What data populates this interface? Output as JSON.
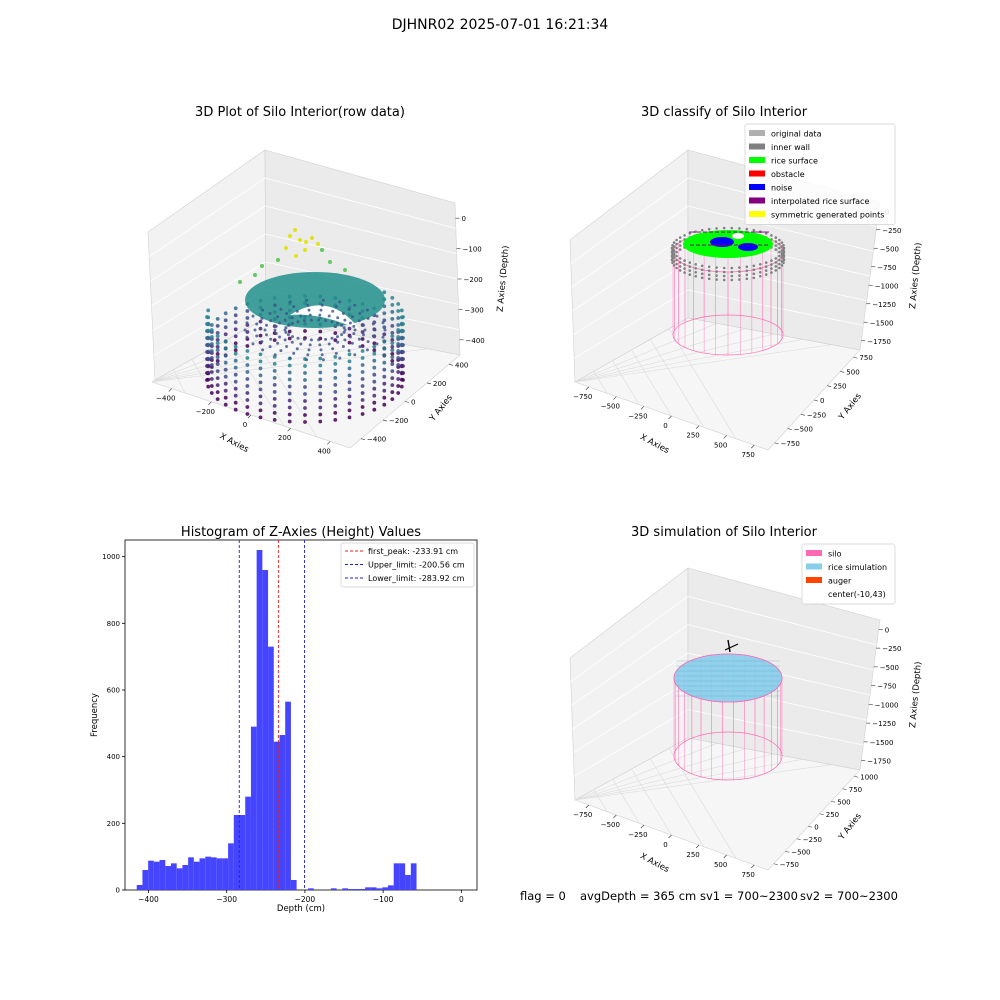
{
  "figure_title": "DJHNR02 2025-07-01 16:21:34",
  "status_bar": {
    "flag": "flag = 0",
    "avg_depth": "avgDepth = 365 cm",
    "sv1": "sv1 = 700~2300",
    "sv2": "sv2 = 700~2300"
  },
  "colors": {
    "bar": "#4545ff",
    "peak_line": "#e02020",
    "limit_line": "#2020c0",
    "silo": "#ff69b4",
    "rice_simulation": "#87ceeb",
    "auger": "#ff4500",
    "original_data": "#b0b0b0",
    "inner_wall": "#808080",
    "rice_surface": "#00ff00",
    "obstacle": "#ff0000",
    "noise": "#0000ff",
    "interpolated_rice_surface": "#800080",
    "symmetric_generated_points": "#ffff00"
  },
  "chart_data": [
    {
      "type": "scatter3d",
      "title": "3D Plot of Silo Interior(row data)",
      "xlabel": "X Axies",
      "ylabel": "Y Axies",
      "zlabel": "Z Axies (Depth)",
      "x_ticks": [
        "−400",
        "−200",
        "0",
        "200",
        "400"
      ],
      "y_ticks": [
        "−400",
        "−200",
        "0",
        "200",
        "400"
      ],
      "z_ticks": [
        "−400",
        "−300",
        "−200",
        "−100",
        "0"
      ],
      "colormap": "viridis",
      "xlim": [
        -450,
        450
      ],
      "ylim": [
        -450,
        450
      ],
      "zlim": [
        -430,
        0
      ]
    },
    {
      "type": "scatter3d",
      "title": "3D classify of Silo Interior",
      "xlabel": "X Axies",
      "ylabel": "Y Axies",
      "zlabel": "Z Axies (Depth)",
      "x_ticks": [
        "−750",
        "−500",
        "−250",
        "0",
        "250",
        "500",
        "750"
      ],
      "y_ticks": [
        "−750",
        "−500",
        "−250",
        "0",
        "250",
        "500",
        "750"
      ],
      "z_ticks": [
        "−1750",
        "−1500",
        "−1250",
        "−1000",
        "−750",
        "−500",
        "−250",
        "0"
      ],
      "legend": [
        {
          "label": "original data",
          "color": "#b0b0b0"
        },
        {
          "label": "inner wall",
          "color": "#808080"
        },
        {
          "label": "rice surface",
          "color": "#00ff00"
        },
        {
          "label": "obstacle",
          "color": "#ff0000"
        },
        {
          "label": "noise",
          "color": "#0000ff"
        },
        {
          "label": "interpolated rice surface",
          "color": "#800080"
        },
        {
          "label": "symmetric generated points",
          "color": "#ffff00"
        }
      ],
      "legend_position": "top-right",
      "xlim": [
        -850,
        850
      ],
      "ylim": [
        -850,
        850
      ],
      "zlim": [
        -1850,
        0
      ]
    },
    {
      "type": "bar",
      "title": "Histogram of Z-Axies (Height) Values",
      "xlabel": "Depth (cm)",
      "ylabel": "Frequency",
      "bin_start": -415,
      "bin_width": 7.3,
      "values": [
        15,
        60,
        88,
        85,
        90,
        72,
        80,
        65,
        75,
        98,
        85,
        95,
        100,
        98,
        95,
        95,
        140,
        225,
        225,
        280,
        490,
        1020,
        960,
        730,
        445,
        465,
        565,
        30,
        0,
        0,
        5,
        0,
        0,
        0,
        5,
        0,
        5,
        3,
        3,
        3,
        8,
        8,
        5,
        8,
        14,
        80,
        80,
        45,
        80
      ],
      "xlim": [
        -430,
        20
      ],
      "ylim": [
        0,
        1050
      ],
      "x_ticks": [
        -400,
        -300,
        -200,
        -100,
        0
      ],
      "x_tick_labels": [
        "−400",
        "−300",
        "−200",
        "−100",
        "0"
      ],
      "y_ticks": [
        0,
        200,
        400,
        600,
        800,
        1000
      ],
      "grid": false,
      "vlines": [
        {
          "label": "first_peak: -233.91 cm",
          "x": -233.91,
          "style": "peak"
        },
        {
          "label": "Upper_limit: -200.56 cm",
          "x": -200.56,
          "style": "limit"
        },
        {
          "label": "Lower_limit: -283.92 cm",
          "x": -283.92,
          "style": "limit"
        }
      ],
      "legend_position": "top-right"
    },
    {
      "type": "surface3d",
      "title": "3D simulation of Silo Interior",
      "xlabel": "X Axies",
      "ylabel": "Y Axies",
      "zlabel": "Z Axies (Depth)",
      "x_ticks": [
        "−750",
        "−500",
        "−250",
        "0",
        "250",
        "500",
        "750"
      ],
      "y_ticks": [
        "−750",
        "−500",
        "−250",
        "0",
        "250",
        "500",
        "750",
        "1000"
      ],
      "z_ticks": [
        "−1750",
        "−1500",
        "−1250",
        "−1000",
        "−750",
        "−500",
        "−250",
        "0"
      ],
      "legend": [
        {
          "label": "silo",
          "color": "#ff69b4"
        },
        {
          "label": "rice simulation",
          "color": "#87ceeb"
        },
        {
          "label": "auger",
          "color": "#ff4500"
        },
        {
          "label": "center(-10,43)",
          "color": ""
        }
      ],
      "legend_position": "top-right"
    }
  ]
}
